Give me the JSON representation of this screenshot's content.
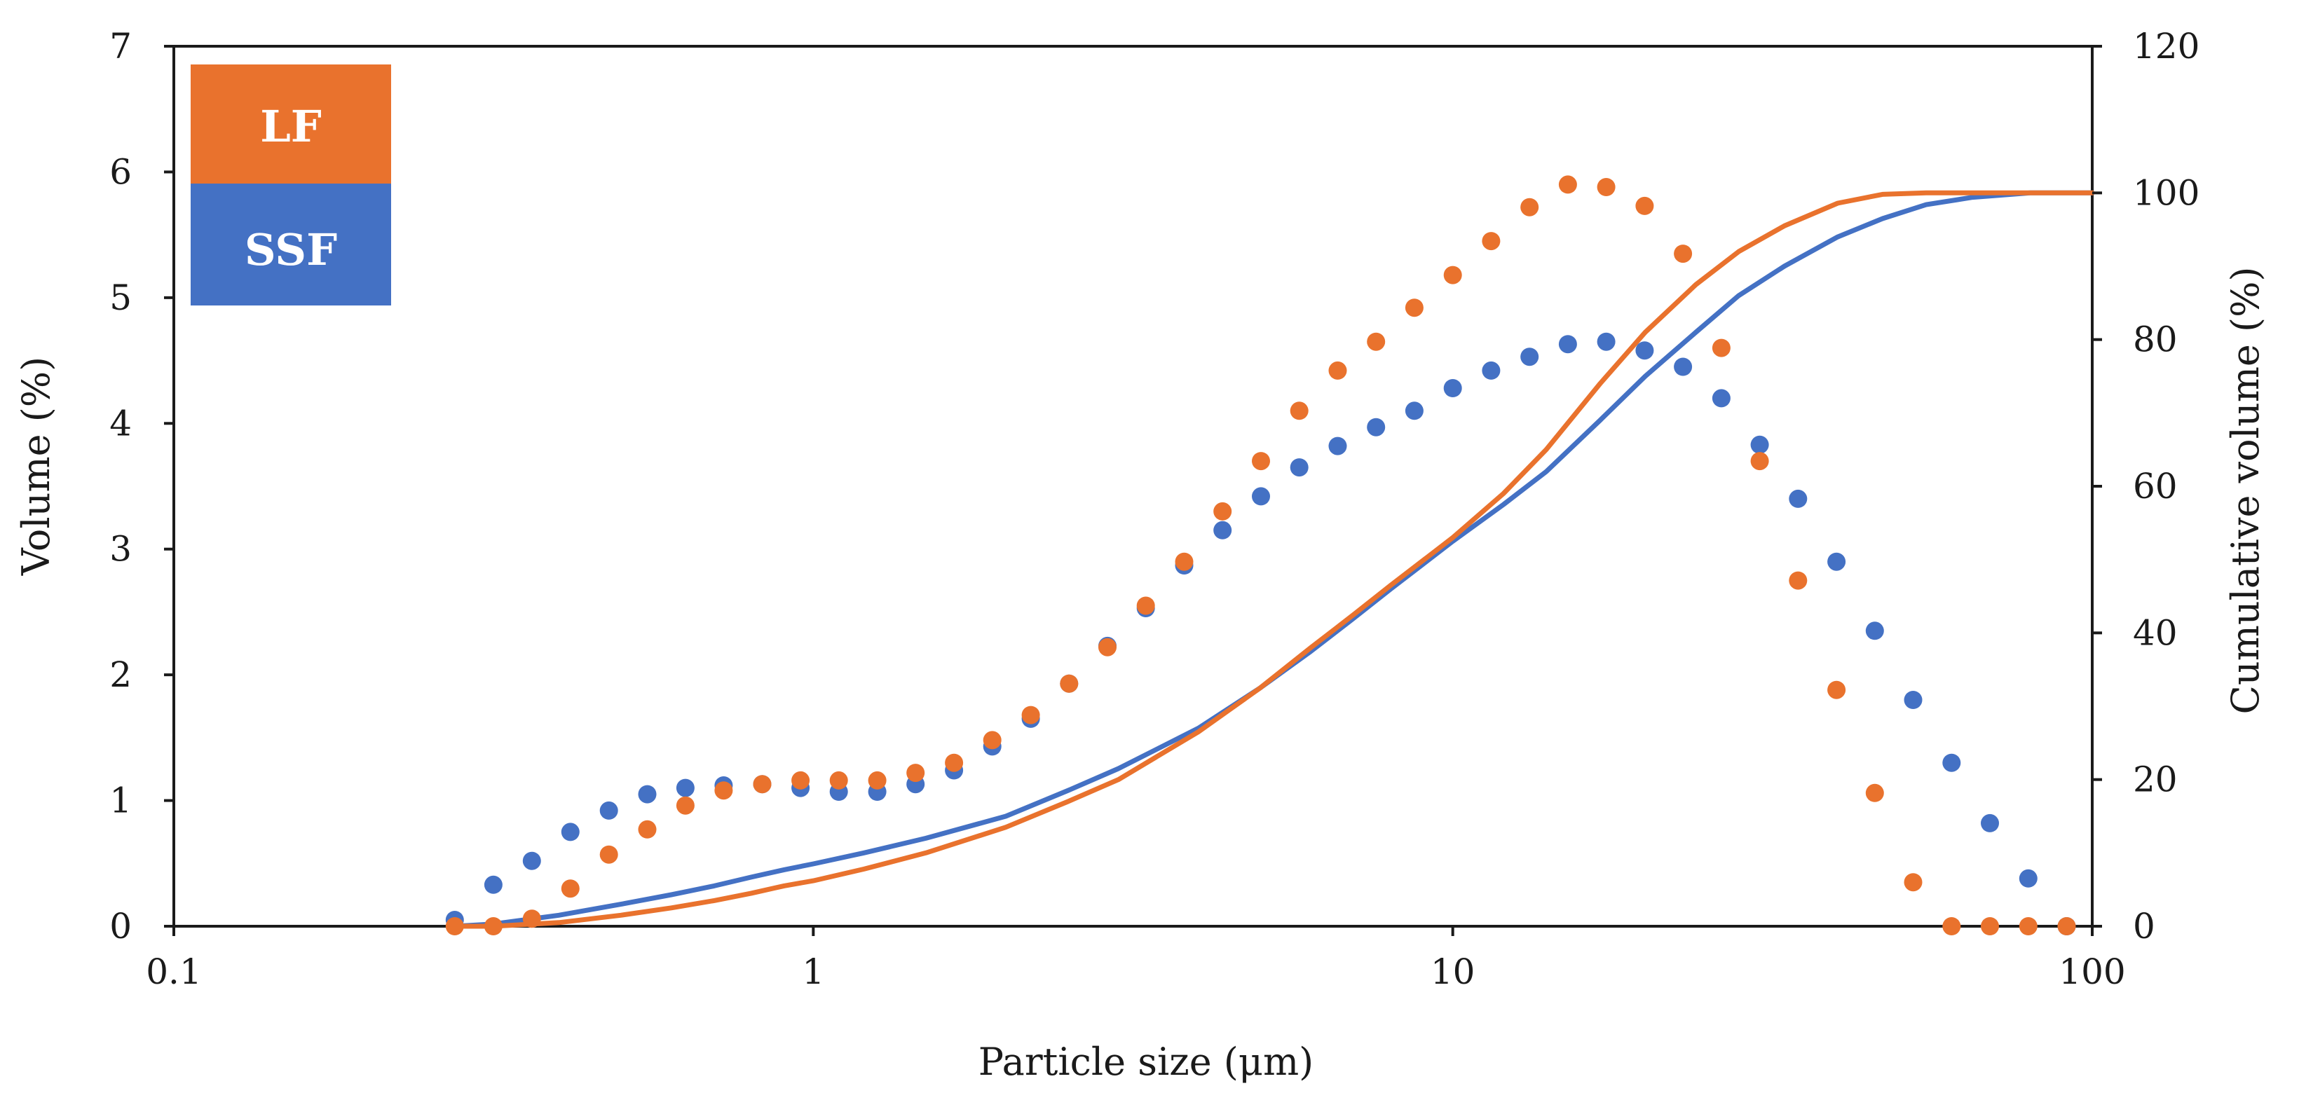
{
  "chart_data": {
    "type": "scatter",
    "title": "",
    "xlabel": "Particle size (μm)",
    "ylabel": "Volume (%)",
    "y2label": "Cumulative volume (%)",
    "xscale": "log",
    "xlim": [
      0.1,
      100
    ],
    "ylim": [
      0,
      7
    ],
    "y2lim": [
      0,
      120
    ],
    "x_ticks": [
      0.1,
      1,
      10,
      100
    ],
    "x_tick_labels": [
      "0.1",
      "1",
      "10",
      "100"
    ],
    "y_ticks": [
      0,
      1,
      2,
      3,
      4,
      5,
      6,
      7
    ],
    "y_tick_labels": [
      "0",
      "1",
      "2",
      "3",
      "4",
      "5",
      "6",
      "7"
    ],
    "y2_ticks": [
      0,
      20,
      40,
      60,
      80,
      100,
      120
    ],
    "y2_tick_labels": [
      "0",
      "20",
      "40",
      "60",
      "80",
      "100",
      "120"
    ],
    "grid": false,
    "legend_position": "top-left",
    "colors": {
      "LF": "#E9722D",
      "SSF": "#4471C4",
      "axis": "#1a1a1a"
    },
    "x_bins": [
      0.275,
      0.316,
      0.363,
      0.417,
      0.479,
      0.55,
      0.631,
      0.724,
      0.832,
      0.955,
      1.096,
      1.259,
      1.445,
      1.66,
      1.905,
      2.188,
      2.512,
      2.884,
      3.311,
      3.802,
      4.365,
      5.012,
      5.754,
      6.607,
      7.586,
      8.71,
      10.0,
      11.482,
      13.183,
      15.136,
      17.378,
      19.953,
      22.909,
      26.303,
      30.2,
      34.674,
      39.811,
      45.709,
      52.481,
      60.256,
      69.183,
      79.433,
      91.201
    ],
    "series": [
      {
        "name": "LF",
        "kind": "volume",
        "axis": "left",
        "style": "markers",
        "values": [
          0.0,
          0.0,
          0.06,
          0.3,
          0.57,
          0.77,
          0.96,
          1.08,
          1.13,
          1.16,
          1.16,
          1.16,
          1.22,
          1.3,
          1.48,
          1.68,
          1.93,
          2.22,
          2.55,
          2.9,
          3.3,
          3.7,
          4.1,
          4.42,
          4.65,
          4.92,
          5.18,
          5.45,
          5.72,
          5.9,
          5.88,
          5.73,
          5.35,
          4.6,
          3.7,
          2.75,
          1.88,
          1.06,
          0.35,
          0.0,
          0.0,
          0.0,
          0.0
        ]
      },
      {
        "name": "SSF",
        "kind": "volume",
        "axis": "left",
        "style": "markers",
        "values": [
          0.05,
          0.33,
          0.52,
          0.75,
          0.92,
          1.05,
          1.1,
          1.12,
          1.13,
          1.1,
          1.07,
          1.07,
          1.13,
          1.24,
          1.43,
          1.65,
          1.93,
          2.23,
          2.53,
          2.87,
          3.15,
          3.42,
          3.65,
          3.82,
          3.97,
          4.1,
          4.28,
          4.42,
          4.53,
          4.63,
          4.65,
          4.58,
          4.45,
          4.2,
          3.83,
          3.4,
          2.9,
          2.35,
          1.8,
          1.3,
          0.82,
          0.38,
          0.0
        ]
      },
      {
        "name": "LF",
        "kind": "cumulative",
        "axis": "right",
        "style": "line",
        "x": [
          0.275,
          0.316,
          0.4,
          0.5,
          0.6,
          0.7,
          0.8,
          0.9,
          1.0,
          1.2,
          1.5,
          2.0,
          2.5,
          3.0,
          4.0,
          5.0,
          6.0,
          7.0,
          8.0,
          10.0,
          12.0,
          14.0,
          17.0,
          20.0,
          24.0,
          28.0,
          33.0,
          40.0,
          47.0,
          55.0,
          65.0,
          100.0
        ],
        "values": [
          0.0,
          0.0,
          0.5,
          1.5,
          2.5,
          3.5,
          4.5,
          5.5,
          6.2,
          7.8,
          10.0,
          13.5,
          17.0,
          20.0,
          26.5,
          32.5,
          38.0,
          42.5,
          46.5,
          53.0,
          59.0,
          65.0,
          74.0,
          81.0,
          87.5,
          92.0,
          95.5,
          98.6,
          99.8,
          100.0,
          100.0,
          100.0
        ]
      },
      {
        "name": "SSF",
        "kind": "cumulative",
        "axis": "right",
        "style": "line",
        "x": [
          0.275,
          0.316,
          0.4,
          0.5,
          0.6,
          0.7,
          0.8,
          0.9,
          1.0,
          1.2,
          1.5,
          2.0,
          2.5,
          3.0,
          4.0,
          5.0,
          6.0,
          7.0,
          8.0,
          10.0,
          12.0,
          14.0,
          17.0,
          20.0,
          24.0,
          28.0,
          33.0,
          40.0,
          47.0,
          55.0,
          65.0,
          80.0,
          100.0
        ],
        "values": [
          0.0,
          0.3,
          1.5,
          3.0,
          4.3,
          5.5,
          6.7,
          7.7,
          8.5,
          10.0,
          12.0,
          15.0,
          18.5,
          21.5,
          27.0,
          32.5,
          37.5,
          42.0,
          46.0,
          52.5,
          57.5,
          62.0,
          69.0,
          75.0,
          81.0,
          86.0,
          90.0,
          94.0,
          96.5,
          98.4,
          99.4,
          100.0,
          100.0
        ]
      }
    ],
    "legend": [
      {
        "label": "LF",
        "color": "#E9722D"
      },
      {
        "label": "SSF",
        "color": "#4471C4"
      }
    ]
  }
}
